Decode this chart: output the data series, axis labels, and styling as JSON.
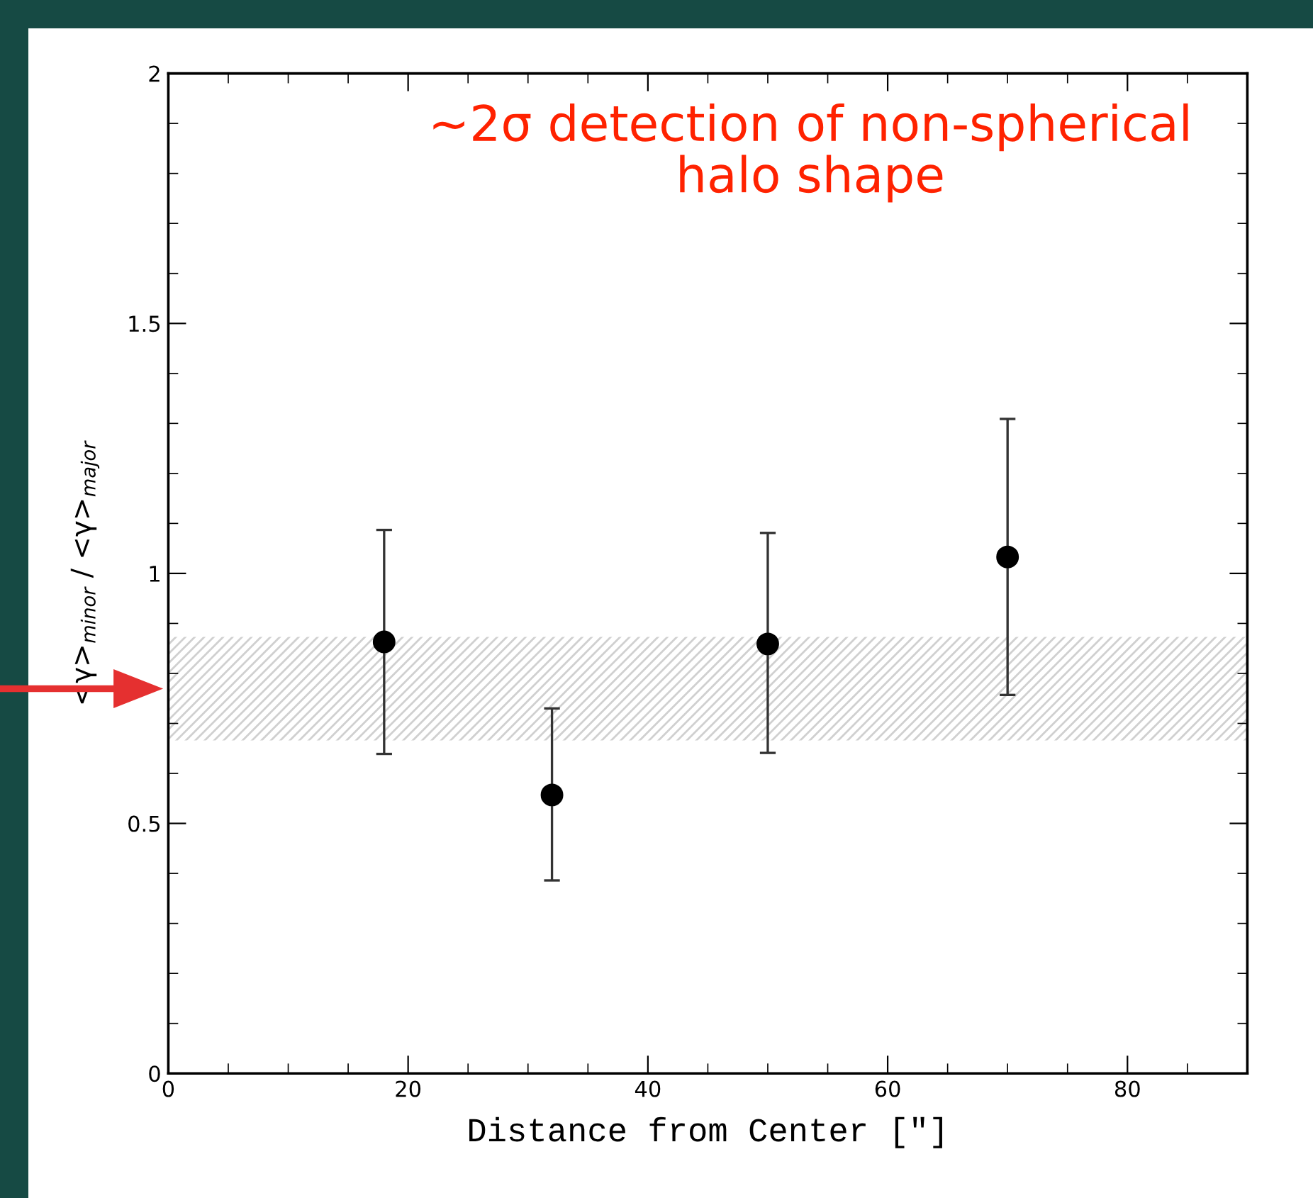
{
  "chart_data": {
    "type": "scatter",
    "xlabel": "Distance from Center [″]",
    "ylabel": "<γ>$_{minor}$ / <γ>$_{major}$",
    "annotations": [
      "~2σ detection of non-spherical\nhalo shape"
    ],
    "x": [
      18,
      32,
      50,
      70
    ],
    "series": [
      {
        "color": "#000000",
        "values": [
          0.863,
          0.557,
          0.859,
          1.033
        ],
        "errors": [
          [
            0.639,
            1.087
          ],
          [
            0.386,
            0.73
          ],
          [
            0.641,
            1.081
          ],
          [
            0.757,
            1.309
          ]
        ]
      }
    ],
    "marker": "circle",
    "xlim": [
      0,
      90
    ],
    "xticks": [
      0,
      20,
      40,
      60,
      80
    ],
    "ylim": [
      0,
      2
    ],
    "yticks": [
      0,
      0.5,
      1,
      1.5,
      2
    ],
    "bands": [
      {
        "axis": "y",
        "from": 0.666,
        "to": 0.873,
        "color": "#d0d0d0"
      }
    ],
    "grid": false,
    "legend": false
  }
}
